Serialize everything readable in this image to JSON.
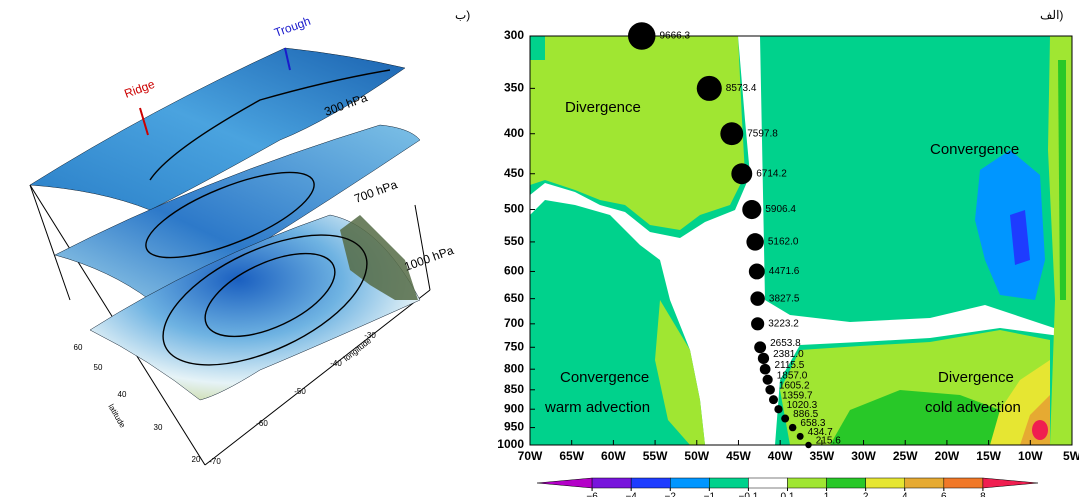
{
  "chart_data": [
    {
      "type": "surface3d",
      "panel_label": "ب)",
      "surfaces": [
        "300 hPa",
        "700 hPa",
        "1000 hPa"
      ],
      "annotations": [
        "Trough",
        "Ridge"
      ],
      "xlabel": "longitude",
      "ylabel": "latitude",
      "xticks": [
        -70,
        -60,
        -50,
        -40,
        -30
      ],
      "yticks": [
        20,
        30,
        40,
        50,
        60
      ]
    },
    {
      "type": "contour",
      "panel_label": "الف)",
      "annotations": [
        "Divergence",
        "Convergence",
        "Convergence",
        "warm advection",
        "Divergence",
        "cold advection"
      ],
      "xlim": [
        -70,
        -5
      ],
      "xticks": [
        {
          "value": -70,
          "label": "70W"
        },
        {
          "value": -65,
          "label": "65W"
        },
        {
          "value": -60,
          "label": "60W"
        },
        {
          "value": -55,
          "label": "55W"
        },
        {
          "value": -50,
          "label": "50W"
        },
        {
          "value": -45,
          "label": "45W"
        },
        {
          "value": -40,
          "label": "40W"
        },
        {
          "value": -35,
          "label": "35W"
        },
        {
          "value": -30,
          "label": "30W"
        },
        {
          "value": -25,
          "label": "25W"
        },
        {
          "value": -20,
          "label": "20W"
        },
        {
          "value": -15,
          "label": "15W"
        },
        {
          "value": -10,
          "label": "10W"
        },
        {
          "value": -5,
          "label": "5W"
        }
      ],
      "ylim": [
        1000,
        300
      ],
      "ylog": true,
      "yticks": [
        300,
        350,
        400,
        450,
        500,
        550,
        600,
        650,
        700,
        750,
        800,
        850,
        900,
        950,
        1000
      ],
      "points": {
        "x": [
          -56.6,
          -48.5,
          -45.8,
          -44.6,
          -43.4,
          -43.0,
          -42.8,
          -42.7,
          -42.7,
          -42.4,
          -42.0,
          -41.8,
          -41.5,
          -41.2,
          -40.8,
          -40.2,
          -39.4,
          -38.5,
          -37.6,
          -36.6
        ],
        "y": [
          300,
          350,
          400,
          450,
          500,
          550,
          600,
          650,
          700,
          750,
          775,
          800,
          825,
          850,
          875,
          900,
          925,
          950,
          975,
          1000
        ],
        "values": [
          9666.3,
          8573.4,
          7597.8,
          6714.2,
          5906.4,
          5162.0,
          4471.6,
          3827.5,
          3223.2,
          2653.8,
          2381.0,
          2115.5,
          1857.0,
          1605.2,
          1359.7,
          1020.3,
          886.5,
          658.3,
          434.7,
          215.6
        ],
        "value_labels": [
          "9666.3",
          "8573.4",
          "7597.8",
          "6714.2",
          "5906.4",
          "5162.0",
          "4471.6",
          "3827.5",
          "3223.2",
          "2653.8",
          "2381.0",
          "2115.5",
          "1857.0",
          "1605.2",
          "1359.7",
          "1020.3",
          "886.5",
          "658.3",
          "434.7",
          "215.6"
        ]
      },
      "colorbar": {
        "levels": [
          {
            "value": -6,
            "label": "−6"
          },
          {
            "value": -4,
            "label": "−4"
          },
          {
            "value": -2,
            "label": "−2"
          },
          {
            "value": -1,
            "label": "−1"
          },
          {
            "value": -0.1,
            "label": "−0.1"
          },
          0.1,
          1,
          2,
          4,
          6,
          8
        ],
        "colors": [
          "#b400c8",
          "#7814dc",
          "#1e3cff",
          "#0096ff",
          "#00d28c",
          "#ffffff",
          "#a0e632",
          "#28c828",
          "#e6e632",
          "#e6aa32",
          "#f07828",
          "#f01e50"
        ]
      }
    }
  ]
}
